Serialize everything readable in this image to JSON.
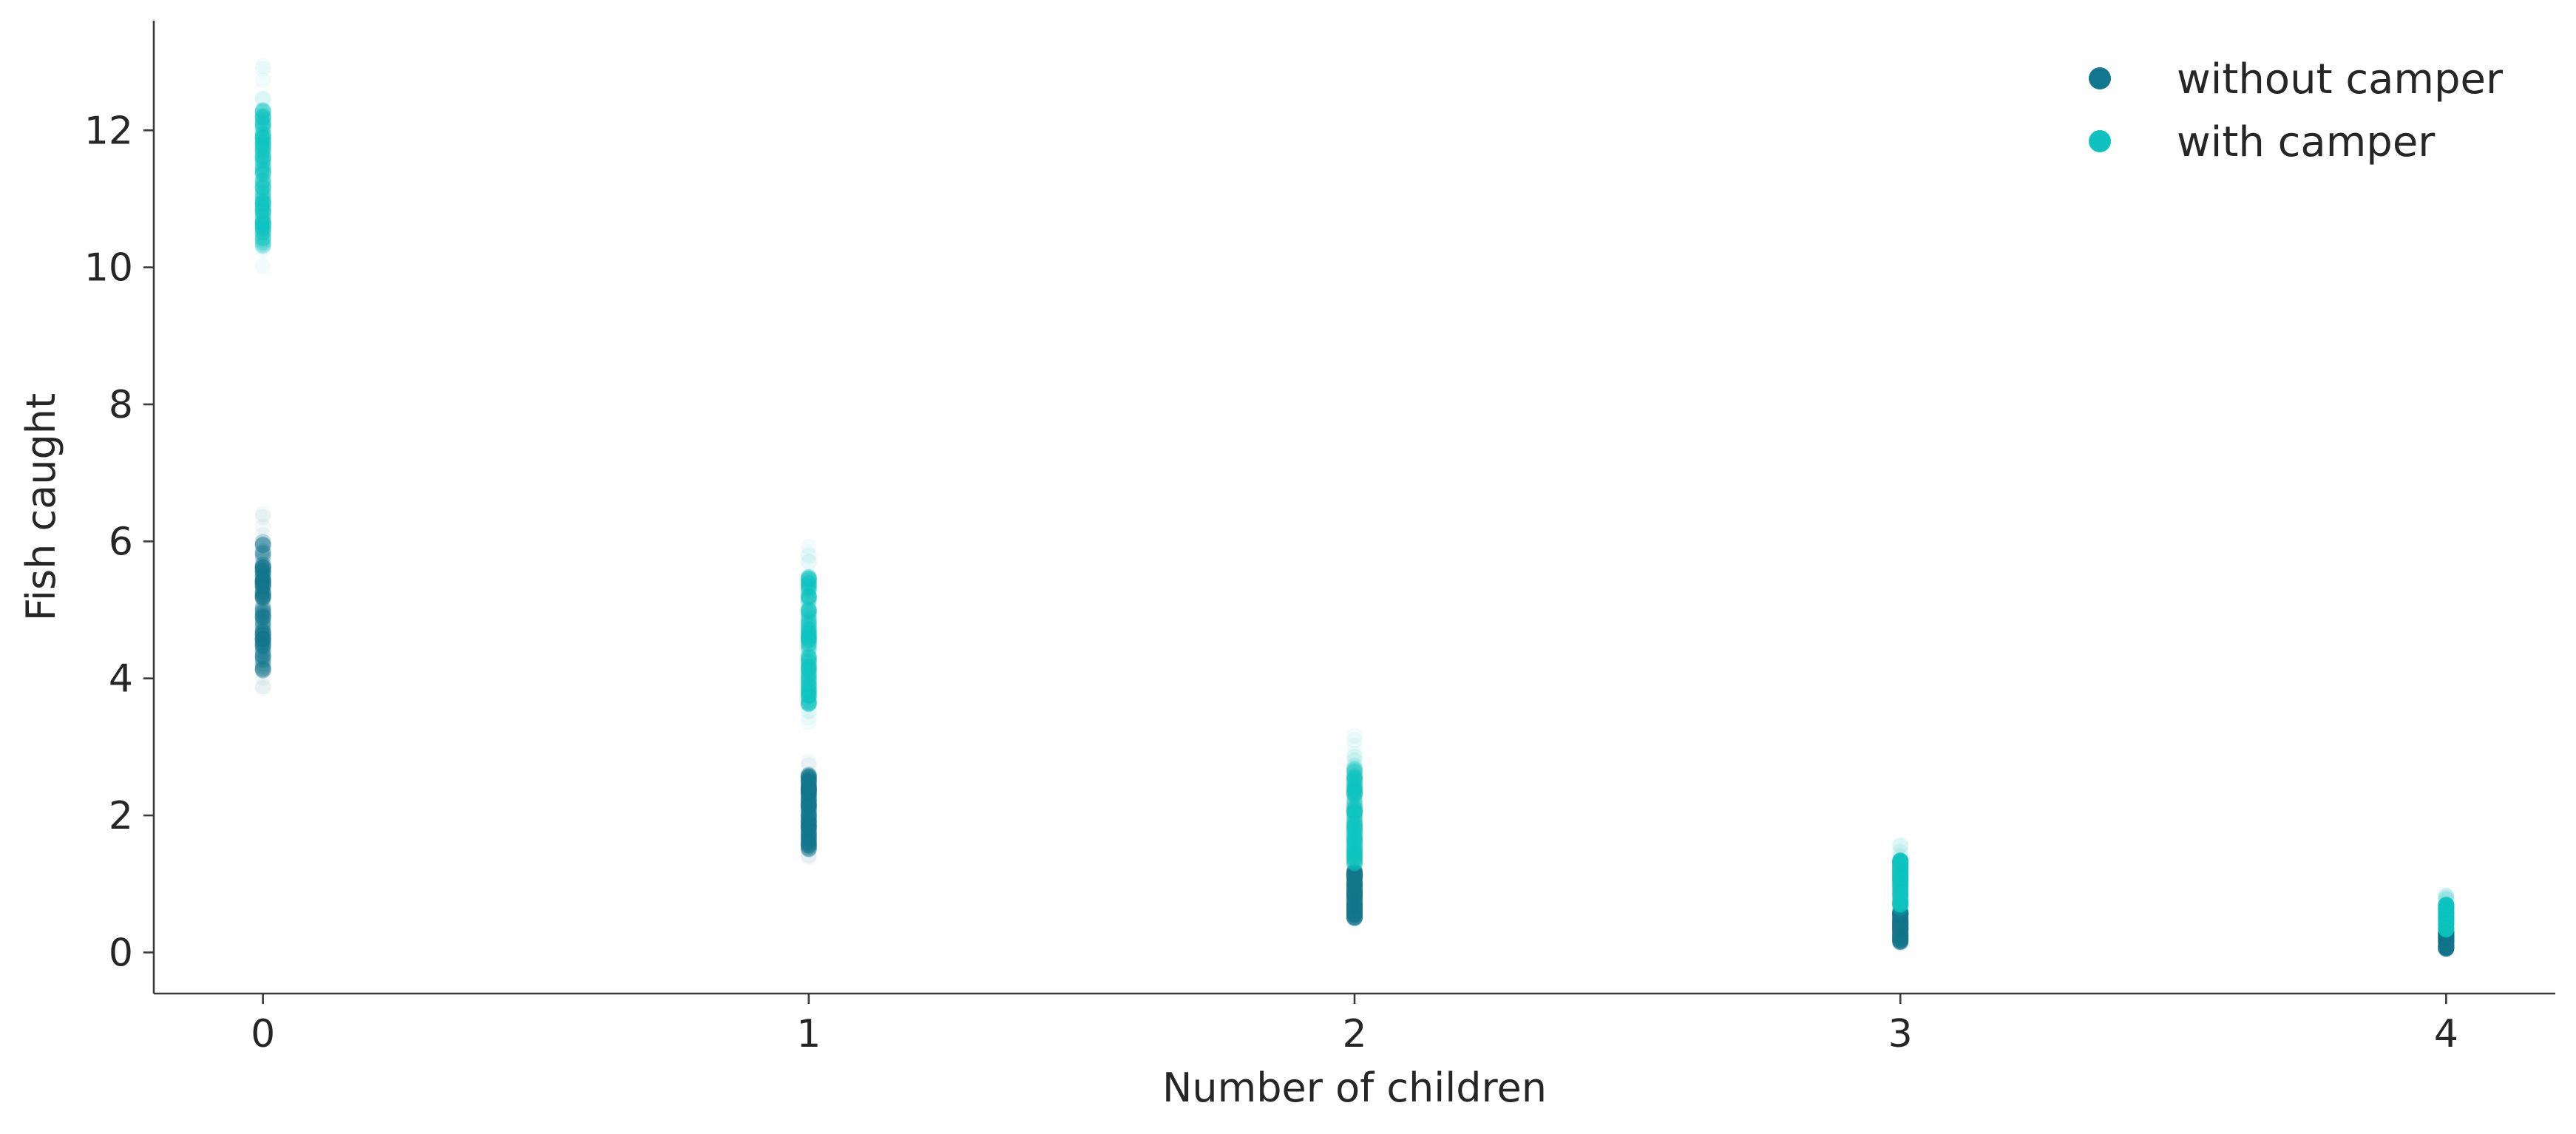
{
  "chart_data": {
    "type": "scatter",
    "title": "",
    "xlabel": "Number of children",
    "ylabel": "Fish caught",
    "xlim": [
      -0.2,
      4.2
    ],
    "ylim": [
      -0.6,
      13.6
    ],
    "xticks": [
      "0",
      "1",
      "2",
      "3",
      "4"
    ],
    "yticks": [
      "0",
      "2",
      "4",
      "6",
      "8",
      "10",
      "12"
    ],
    "grid": false,
    "legend_position": "top-right",
    "series": [
      {
        "name": "without camper",
        "color": "#13778f",
        "points": [
          {
            "x": 0,
            "y_min": 3.6,
            "y_max": 6.6,
            "core_min": 4.1,
            "core_max": 6.0
          },
          {
            "x": 1,
            "y_min": 1.35,
            "y_max": 2.9,
            "core_min": 1.5,
            "core_max": 2.6
          },
          {
            "x": 2,
            "y_min": 0.45,
            "y_max": 1.3,
            "core_min": 0.5,
            "core_max": 1.2
          },
          {
            "x": 3,
            "y_min": 0.12,
            "y_max": 0.65,
            "core_min": 0.15,
            "core_max": 0.6
          },
          {
            "x": 4,
            "y_min": 0.03,
            "y_max": 0.35,
            "core_min": 0.05,
            "core_max": 0.3
          }
        ]
      },
      {
        "name": "with camper",
        "color": "#0fc2c0",
        "points": [
          {
            "x": 0,
            "y_min": 9.9,
            "y_max": 13.0,
            "core_min": 10.3,
            "core_max": 12.3
          },
          {
            "x": 1,
            "y_min": 3.3,
            "y_max": 6.0,
            "core_min": 3.6,
            "core_max": 5.5
          },
          {
            "x": 2,
            "y_min": 1.2,
            "y_max": 3.2,
            "core_min": 1.3,
            "core_max": 2.7
          },
          {
            "x": 3,
            "y_min": 0.6,
            "y_max": 1.6,
            "core_min": 0.65,
            "core_max": 1.35
          },
          {
            "x": 4,
            "y_min": 0.3,
            "y_max": 0.85,
            "core_min": 0.33,
            "core_max": 0.7
          }
        ]
      }
    ]
  }
}
